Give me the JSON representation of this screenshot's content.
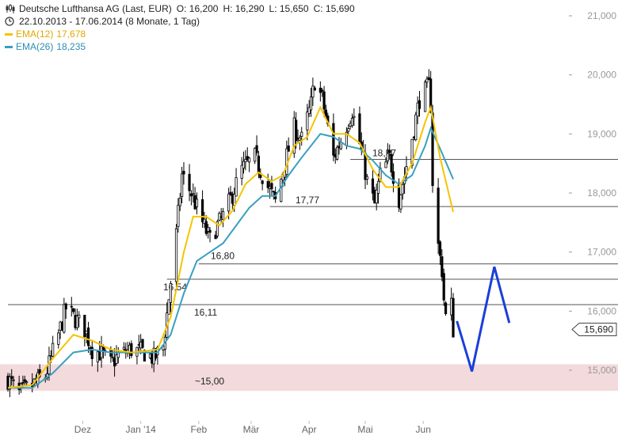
{
  "header": {
    "title": "Deutsche Lufthansa AG (Last, EUR)",
    "open": "O: 16,200",
    "high": "H: 16,290",
    "low": "L: 15,650",
    "close": "C: 15,690",
    "date_range": "22.10.2013 - 17.06.2014 (8 Monate, 1 Tag)",
    "ema12_label": "EMA(12)",
    "ema12_value": "17,678",
    "ema26_label": "EMA(26)",
    "ema26_value": "18,235"
  },
  "colors": {
    "ema12": "#f5c400",
    "ema26": "#3a9fc0",
    "candles": "#000000",
    "projection": "#1a3fd9",
    "zone": "#f3dadd",
    "levels": "#555555"
  },
  "chart_data": {
    "type": "candlestick",
    "title": "Deutsche Lufthansa AG (Last, EUR)",
    "ylim": [
      14.5,
      21.3
    ],
    "y_axis_position": "right",
    "y_ticks": [
      "15,000",
      "16,000",
      "17,000",
      "18,000",
      "19,000",
      "20,000",
      "21,000"
    ],
    "y_tick_values": [
      15,
      16,
      17,
      18,
      19,
      20,
      21
    ],
    "x_ticks": [
      "Dez",
      "Jan '14",
      "Feb",
      "Mär",
      "Apr",
      "Mai",
      "Jun"
    ],
    "x_tick_dates": [
      "2013-12-01",
      "2014-01-01",
      "2014-02-01",
      "2014-03-01",
      "2014-04-01",
      "2014-05-01",
      "2014-06-01"
    ],
    "x_range": [
      "2013-10-22",
      "2014-06-17"
    ],
    "last_price_label": "15,690",
    "last_price": 15.69,
    "price_series": [
      [
        "2013-10-22",
        14.85
      ],
      [
        "2013-10-28",
        14.6
      ],
      [
        "2013-11-04",
        14.75
      ],
      [
        "2013-11-11",
        14.9
      ],
      [
        "2013-11-18",
        15.6
      ],
      [
        "2013-11-22",
        16.05
      ],
      [
        "2013-11-26",
        15.9
      ],
      [
        "2013-12-02",
        15.7
      ],
      [
        "2013-12-06",
        15.35
      ],
      [
        "2013-12-10",
        15.3
      ],
      [
        "2013-12-16",
        15.1
      ],
      [
        "2013-12-20",
        15.25
      ],
      [
        "2013-12-27",
        15.35
      ],
      [
        "2014-01-03",
        15.3
      ],
      [
        "2014-01-08",
        15.2
      ],
      [
        "2014-01-13",
        15.4
      ],
      [
        "2014-01-17",
        16.5
      ],
      [
        "2014-01-20",
        17.3
      ],
      [
        "2014-01-23",
        18.3
      ],
      [
        "2014-01-28",
        18.0
      ],
      [
        "2014-02-03",
        17.5
      ],
      [
        "2014-02-07",
        17.2
      ],
      [
        "2014-02-10",
        17.4
      ],
      [
        "2014-02-14",
        17.6
      ],
      [
        "2014-02-18",
        17.9
      ],
      [
        "2014-02-24",
        18.4
      ],
      [
        "2014-03-03",
        18.6
      ],
      [
        "2014-03-10",
        18.1
      ],
      [
        "2014-03-14",
        17.85
      ],
      [
        "2014-03-19",
        18.5
      ],
      [
        "2014-03-24",
        19.1
      ],
      [
        "2014-03-28",
        18.9
      ],
      [
        "2014-04-02",
        19.5
      ],
      [
        "2014-04-04",
        19.9
      ],
      [
        "2014-04-08",
        19.6
      ],
      [
        "2014-04-14",
        18.6
      ],
      [
        "2014-04-18",
        18.9
      ],
      [
        "2014-04-24",
        19.4
      ],
      [
        "2014-04-29",
        18.7
      ],
      [
        "2014-05-02",
        18.2
      ],
      [
        "2014-05-06",
        17.8
      ],
      [
        "2014-05-09",
        18.3
      ],
      [
        "2014-05-14",
        18.6
      ],
      [
        "2014-05-19",
        17.9
      ],
      [
        "2014-05-22",
        18.3
      ],
      [
        "2014-05-27",
        19.1
      ],
      [
        "2014-05-30",
        19.6
      ],
      [
        "2014-06-04",
        19.8
      ],
      [
        "2014-06-05",
        19.5
      ],
      [
        "2014-06-06",
        18.2
      ],
      [
        "2014-06-09",
        17.1
      ],
      [
        "2014-06-11",
        16.7
      ],
      [
        "2014-06-12",
        16.2
      ],
      [
        "2014-06-13",
        15.9
      ],
      [
        "2014-06-16",
        16.1
      ],
      [
        "2014-06-17",
        15.69
      ]
    ],
    "ema12": [
      [
        "2013-10-22",
        14.7
      ],
      [
        "2013-11-04",
        14.75
      ],
      [
        "2013-11-15",
        15.2
      ],
      [
        "2013-11-26",
        15.6
      ],
      [
        "2013-12-06",
        15.5
      ],
      [
        "2013-12-16",
        15.35
      ],
      [
        "2013-12-27",
        15.3
      ],
      [
        "2014-01-10",
        15.35
      ],
      [
        "2014-01-17",
        15.9
      ],
      [
        "2014-01-24",
        17.0
      ],
      [
        "2014-01-29",
        17.6
      ],
      [
        "2014-02-05",
        17.6
      ],
      [
        "2014-02-12",
        17.45
      ],
      [
        "2014-02-19",
        17.7
      ],
      [
        "2014-02-26",
        18.15
      ],
      [
        "2014-03-05",
        18.35
      ],
      [
        "2014-03-12",
        18.2
      ],
      [
        "2014-03-18",
        18.3
      ],
      [
        "2014-03-24",
        18.8
      ],
      [
        "2014-03-31",
        18.95
      ],
      [
        "2014-04-07",
        19.45
      ],
      [
        "2014-04-14",
        19.0
      ],
      [
        "2014-04-21",
        19.0
      ],
      [
        "2014-04-28",
        18.85
      ],
      [
        "2014-05-05",
        18.4
      ],
      [
        "2014-05-12",
        18.1
      ],
      [
        "2014-05-19",
        18.1
      ],
      [
        "2014-05-26",
        18.5
      ],
      [
        "2014-06-02",
        19.2
      ],
      [
        "2014-06-05",
        19.45
      ],
      [
        "2014-06-10",
        18.6
      ],
      [
        "2014-06-17",
        17.678
      ]
    ],
    "ema26": [
      [
        "2013-10-22",
        14.7
      ],
      [
        "2013-11-04",
        14.7
      ],
      [
        "2013-11-15",
        14.95
      ],
      [
        "2013-11-26",
        15.3
      ],
      [
        "2013-12-06",
        15.35
      ],
      [
        "2013-12-16",
        15.3
      ],
      [
        "2013-12-27",
        15.3
      ],
      [
        "2014-01-10",
        15.3
      ],
      [
        "2014-01-17",
        15.6
      ],
      [
        "2014-01-24",
        16.3
      ],
      [
        "2014-01-31",
        16.85
      ],
      [
        "2014-02-07",
        17.0
      ],
      [
        "2014-02-14",
        17.15
      ],
      [
        "2014-02-21",
        17.45
      ],
      [
        "2014-02-28",
        17.75
      ],
      [
        "2014-03-07",
        17.95
      ],
      [
        "2014-03-14",
        17.95
      ],
      [
        "2014-03-21",
        18.3
      ],
      [
        "2014-03-28",
        18.6
      ],
      [
        "2014-04-07",
        19.0
      ],
      [
        "2014-04-14",
        18.95
      ],
      [
        "2014-04-21",
        18.8
      ],
      [
        "2014-04-28",
        18.75
      ],
      [
        "2014-05-05",
        18.55
      ],
      [
        "2014-05-12",
        18.3
      ],
      [
        "2014-05-19",
        18.15
      ],
      [
        "2014-05-26",
        18.3
      ],
      [
        "2014-06-02",
        18.8
      ],
      [
        "2014-06-05",
        19.1
      ],
      [
        "2014-06-10",
        18.75
      ],
      [
        "2014-06-17",
        18.235
      ]
    ],
    "levels": [
      {
        "label": "18,57",
        "value": 18.57,
        "from": "2014-04-23"
      },
      {
        "label": "17,77",
        "value": 17.77,
        "from": "2014-03-11"
      },
      {
        "label": "16,80",
        "value": 16.8,
        "from": "2014-02-01"
      },
      {
        "label": "16,54",
        "value": 16.54,
        "from": "2014-01-15"
      },
      {
        "label": "16,11",
        "value": 16.11,
        "from": "2013-10-22"
      }
    ],
    "zone": {
      "label": "~15,00",
      "from_value": 14.65,
      "to_value": 15.1
    },
    "projection": [
      [
        "2014-06-19",
        15.83
      ],
      [
        "2014-06-27",
        14.98
      ],
      [
        "2014-07-09",
        16.75
      ],
      [
        "2014-07-17",
        15.8
      ]
    ]
  }
}
